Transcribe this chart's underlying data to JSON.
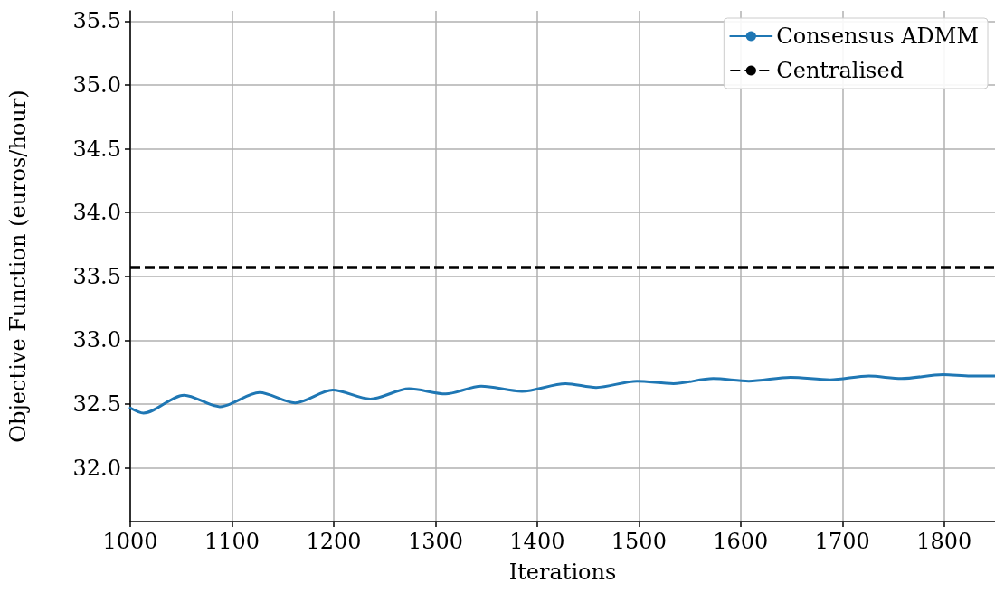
{
  "chart_data": {
    "type": "line",
    "xlabel": "Iterations",
    "ylabel": "Objective Function (euros/hour)",
    "xlim": [
      1000,
      1850
    ],
    "xticks": [
      1000,
      1100,
      1200,
      1300,
      1400,
      1500,
      1600,
      1700,
      1800
    ],
    "ylim": [
      31.58,
      35.58
    ],
    "yticks": [
      {
        "value": 32.0,
        "label": "32.0"
      },
      32.5,
      {
        "value": 33.0,
        "label": "33.0"
      },
      33.5,
      {
        "value": 34.0,
        "label": "34.0"
      },
      34.5,
      {
        "value": 35.0,
        "label": "35.0"
      },
      35.5
    ],
    "series": [
      {
        "name": "Consensus ADMM",
        "color": "#1f77b4",
        "x": [
          1000,
          1013,
          1053,
          1088,
          1127,
          1162,
          1199,
          1236,
          1274,
          1310,
          1345,
          1385,
          1428,
          1458,
          1498,
          1534,
          1573,
          1608,
          1649,
          1688,
          1726,
          1758,
          1799,
          1826,
          1850
        ],
        "values": [
          32.47,
          32.43,
          32.57,
          32.48,
          32.59,
          32.51,
          32.61,
          32.54,
          32.62,
          32.58,
          32.64,
          32.6,
          32.66,
          32.63,
          32.68,
          32.66,
          32.7,
          32.68,
          32.71,
          32.69,
          32.72,
          32.7,
          32.73,
          32.72,
          32.72
        ]
      }
    ],
    "ref_lines": [
      {
        "axis": "y",
        "value": 33.57,
        "label": "Centralised",
        "color": "#000000",
        "line_style": "dashed"
      }
    ],
    "grid": true,
    "legend": "top right",
    "marker": "none",
    "line_style": "solid"
  }
}
